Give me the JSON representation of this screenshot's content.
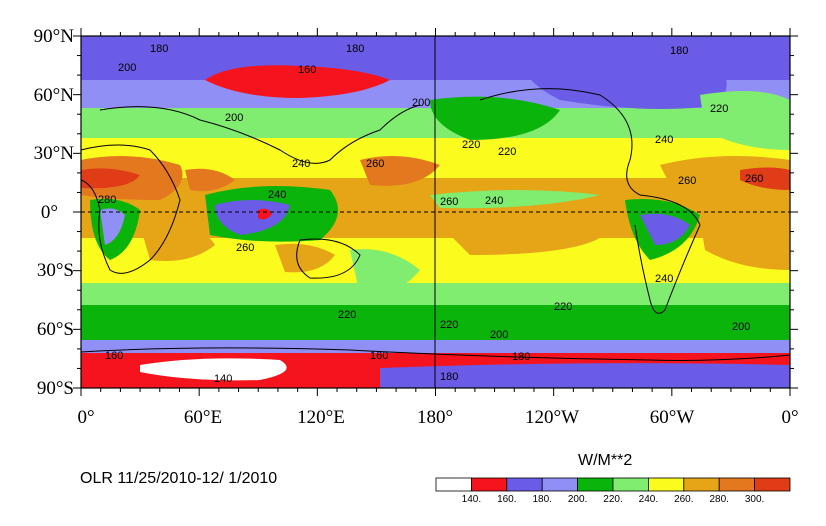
{
  "map": {
    "lat_labels": [
      "90°N",
      "60°N",
      "30°N",
      "0°",
      "30°S",
      "60°S",
      "90°S"
    ],
    "lon_labels": [
      "0°",
      "60°E",
      "120°E",
      "180°",
      "120°W",
      "60°W",
      "0°"
    ],
    "contour_labels": [
      "180",
      "200",
      "160",
      "180",
      "180",
      "200",
      "220",
      "200",
      "220",
      "240",
      "220",
      "260",
      "240",
      "260",
      "260",
      "260",
      "240",
      "280",
      "260",
      "240",
      "240",
      "220",
      "220",
      "200",
      "180",
      "220",
      "160",
      "160",
      "140",
      "180",
      "200"
    ],
    "equator_line": "dashed",
    "meridian_180": "solid",
    "colors": {
      "c140": "#ffffff",
      "c160": "#f5141e",
      "c180": "#6a5ce6",
      "c200": "#8f8ff5",
      "c220": "#0ab40a",
      "c240": "#80ec70",
      "c260": "#fbfb1e",
      "c280": "#e5a516",
      "c300": "#e4781e",
      "c320": "#e03c18"
    }
  },
  "footer": {
    "title": "OLR 11/25/2010-12/ 1/2010",
    "units": "W/M**2"
  },
  "colorbar": {
    "labels": [
      "140.",
      "160.",
      "180.",
      "200.",
      "220.",
      "240.",
      "260.",
      "280.",
      "300."
    ],
    "colors": [
      "#ffffff",
      "#f5141e",
      "#6a5ce6",
      "#8f8ff5",
      "#0ab40a",
      "#80ec70",
      "#fbfb1e",
      "#e5a516",
      "#e4781e",
      "#e03c18"
    ]
  }
}
